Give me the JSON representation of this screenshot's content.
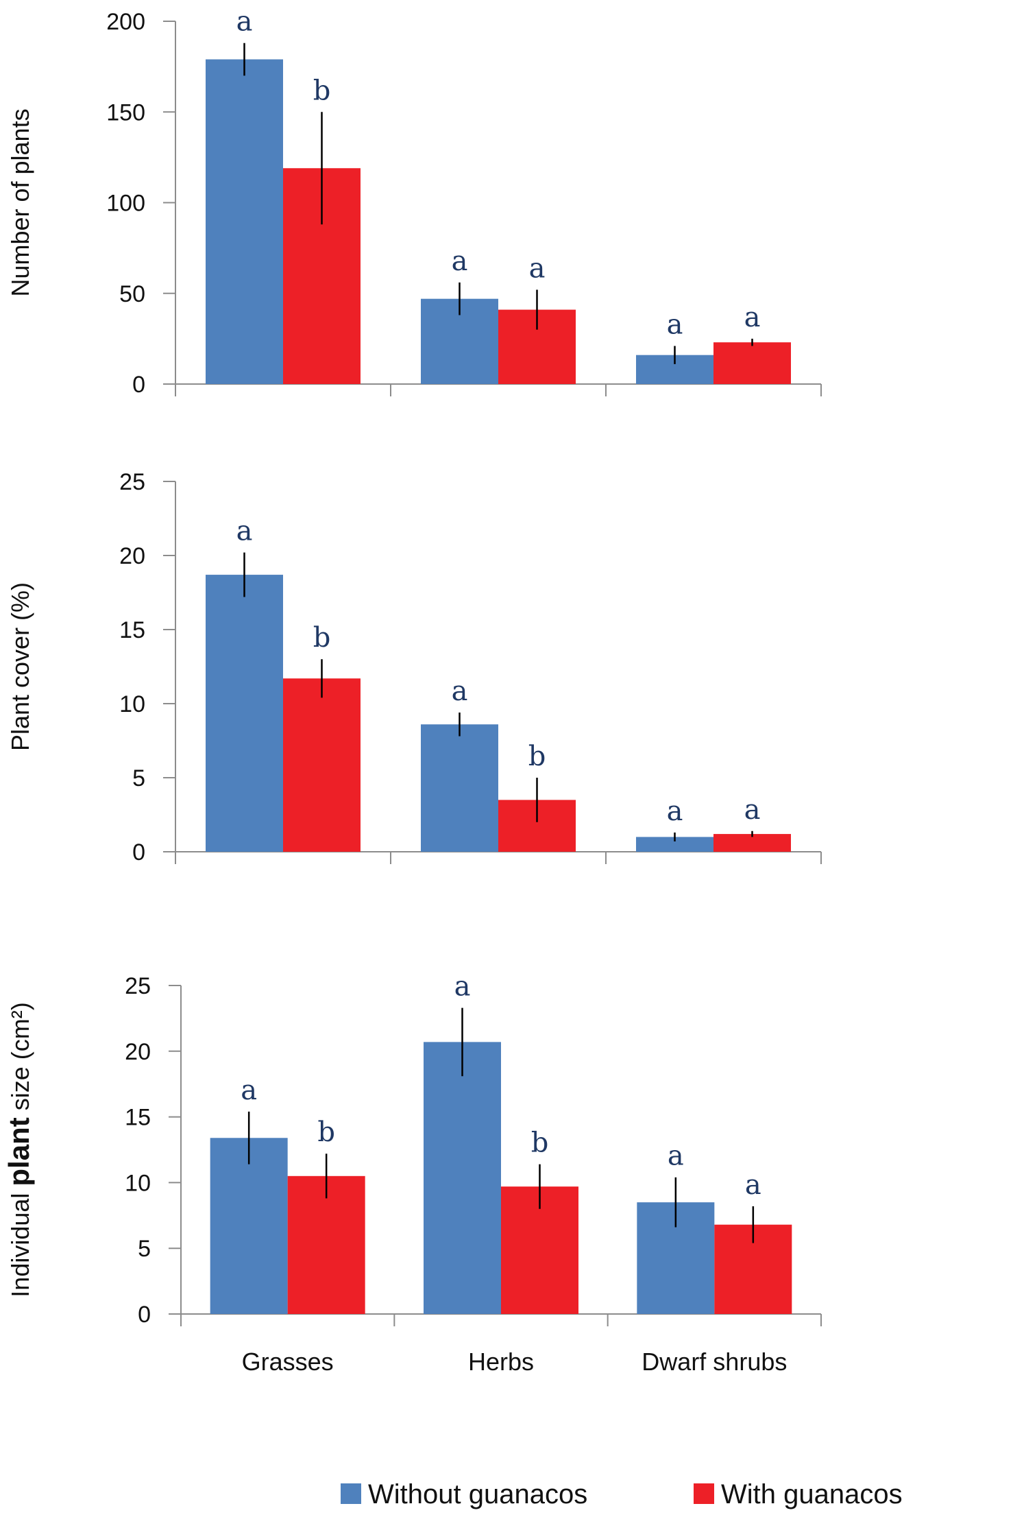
{
  "chart_data": [
    {
      "type": "bar",
      "ylabel": "Number of plants",
      "categories": [
        "Grasses",
        "Herbs",
        "Dwarf shrubs"
      ],
      "show_category_labels": false,
      "ylim": [
        0,
        200
      ],
      "yticks": [
        0,
        50,
        100,
        150,
        200
      ],
      "series": [
        {
          "name": "Without guanacos",
          "values": [
            179,
            47,
            16
          ],
          "errors": [
            9,
            9,
            5
          ],
          "letters": [
            "a",
            "a",
            "a"
          ]
        },
        {
          "name": "With guanacos",
          "values": [
            119,
            41,
            23
          ],
          "errors": [
            31,
            11,
            2
          ],
          "letters": [
            "b",
            "a",
            "a"
          ]
        }
      ]
    },
    {
      "type": "bar",
      "ylabel": "Plant cover (%)",
      "categories": [
        "Grasses",
        "Herbs",
        "Dwarf shrubs"
      ],
      "show_category_labels": false,
      "ylim": [
        0,
        25
      ],
      "yticks": [
        0,
        5,
        10,
        15,
        20,
        25
      ],
      "series": [
        {
          "name": "Without guanacos",
          "values": [
            18.7,
            8.6,
            1.0
          ],
          "errors": [
            1.5,
            0.8,
            0.3
          ],
          "letters": [
            "a",
            "a",
            "a"
          ]
        },
        {
          "name": "With guanacos",
          "values": [
            11.7,
            3.5,
            1.2
          ],
          "errors": [
            1.3,
            1.5,
            0.2
          ],
          "letters": [
            "b",
            "b",
            "a"
          ]
        }
      ]
    },
    {
      "type": "bar",
      "ylabel_parts": [
        "Individual ",
        "plant",
        " size (cm²)"
      ],
      "categories": [
        "Grasses",
        "Herbs",
        "Dwarf shrubs"
      ],
      "show_category_labels": true,
      "ylim": [
        0,
        25
      ],
      "yticks": [
        0,
        5,
        10,
        15,
        20,
        25
      ],
      "series": [
        {
          "name": "Without guanacos",
          "values": [
            13.4,
            20.7,
            8.5
          ],
          "errors": [
            2.0,
            2.6,
            1.9
          ],
          "letters": [
            "a",
            "a",
            "a"
          ]
        },
        {
          "name": "With guanacos",
          "values": [
            10.5,
            9.7,
            6.8
          ],
          "errors": [
            1.7,
            1.7,
            1.4
          ],
          "letters": [
            "b",
            "b",
            "a"
          ]
        }
      ]
    }
  ],
  "legend": {
    "items": [
      {
        "label": "Without guanacos",
        "color": "#4f81bd"
      },
      {
        "label": "With guanacos",
        "color": "#ed2027"
      }
    ]
  },
  "colors": [
    "#4f81bd",
    "#ed2027"
  ]
}
